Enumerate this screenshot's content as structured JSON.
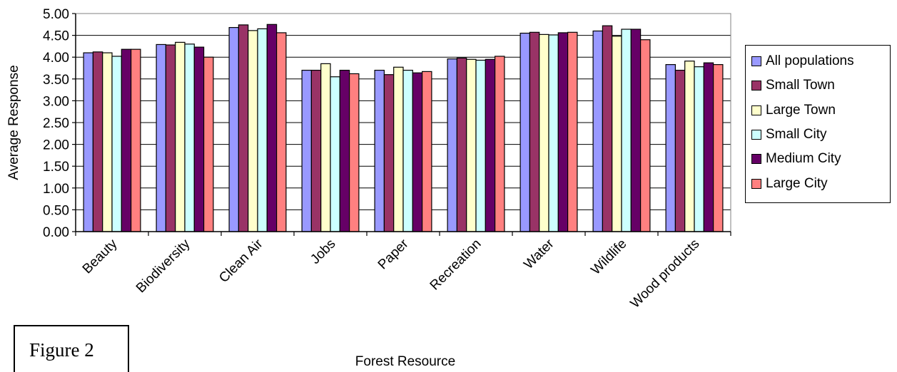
{
  "figure_label": "Figure 2",
  "chart_data": {
    "type": "bar",
    "xlabel": "Forest Resource",
    "ylabel": "Average Response",
    "ylim": [
      0,
      5
    ],
    "ytick_step": 0.5,
    "yticks": [
      "0.00",
      "0.50",
      "1.00",
      "1.50",
      "2.00",
      "2.50",
      "3.00",
      "3.50",
      "4.00",
      "4.50",
      "5.00"
    ],
    "grid": true,
    "legend_position": "right",
    "categories": [
      "Beauty",
      "Biodiversity",
      "Clean Air",
      "Jobs",
      "Paper",
      "Recreation",
      "Water",
      "Wildlife",
      "Wood products"
    ],
    "series": [
      {
        "name": "All populations",
        "color": "#9999FF",
        "values": [
          4.1,
          4.29,
          4.68,
          3.7,
          3.7,
          3.96,
          4.55,
          4.6,
          3.83
        ]
      },
      {
        "name": "Small Town",
        "color": "#993366",
        "values": [
          4.12,
          4.28,
          4.74,
          3.7,
          3.6,
          3.98,
          4.57,
          4.72,
          3.7
        ]
      },
      {
        "name": "Large Town",
        "color": "#FFFFCC",
        "values": [
          4.1,
          4.34,
          4.61,
          3.85,
          3.77,
          3.95,
          4.52,
          4.48,
          3.91
        ]
      },
      {
        "name": "Small City",
        "color": "#CCFFFF",
        "values": [
          4.02,
          4.3,
          4.65,
          3.55,
          3.7,
          3.93,
          4.51,
          4.64,
          3.78
        ]
      },
      {
        "name": "Medium City",
        "color": "#660066",
        "values": [
          4.18,
          4.23,
          4.75,
          3.7,
          3.64,
          3.95,
          4.56,
          4.64,
          3.87
        ]
      },
      {
        "name": "Large City",
        "color": "#FF8080",
        "values": [
          4.18,
          4.0,
          4.56,
          3.62,
          3.67,
          4.02,
          4.57,
          4.4,
          3.83
        ]
      }
    ]
  }
}
